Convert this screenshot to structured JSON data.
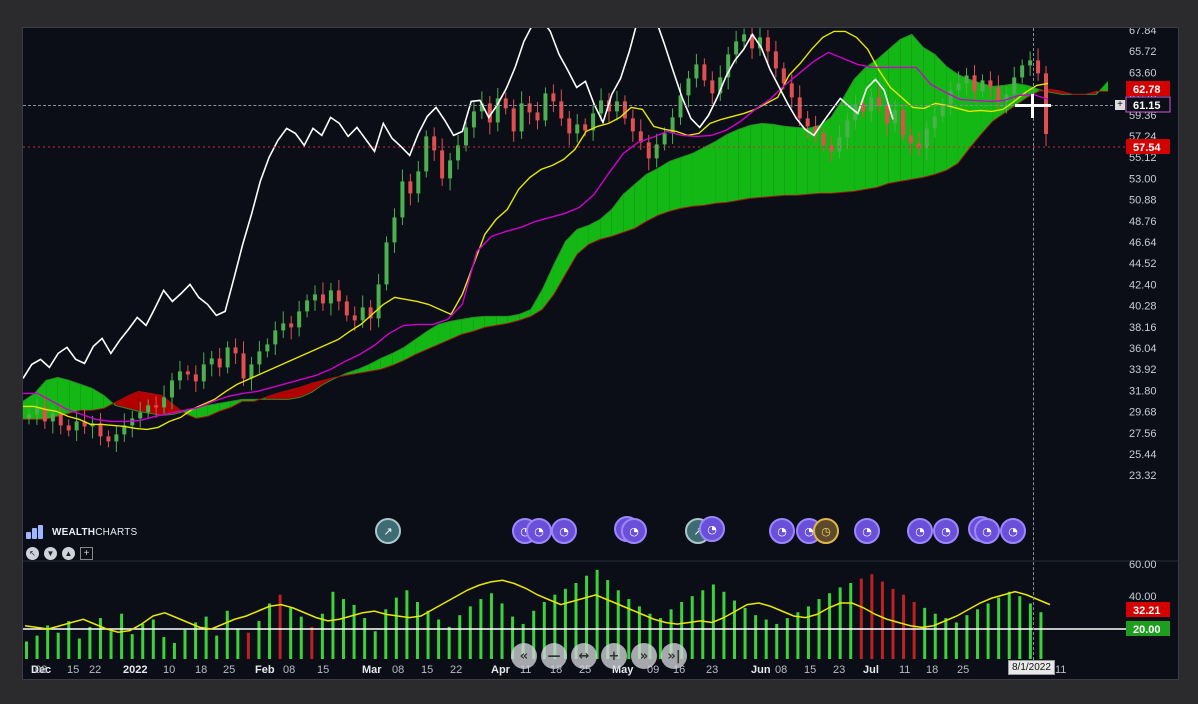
{
  "price_axis_labels": [
    "67.84",
    "65.72",
    "63.60",
    "61.48",
    "59.36",
    "57.24",
    "55.12",
    "53.00",
    "50.88",
    "48.76",
    "46.64",
    "44.52",
    "42.40",
    "40.28",
    "38.16",
    "36.04",
    "33.92",
    "31.80",
    "29.68",
    "27.56",
    "25.44",
    "23.32"
  ],
  "osc_axis_labels": [
    "60.00",
    "40.00",
    "20.00"
  ],
  "price_tags": [
    {
      "value": "62.78",
      "bg": "#d40000",
      "fg": "#ffffff"
    },
    {
      "value": "61.15",
      "bg": "#0b0e16",
      "fg": "#ffffff",
      "border": "#d05bd6"
    },
    {
      "value": "57.54",
      "bg": "#d40000",
      "fg": "#ffffff"
    }
  ],
  "osc_tags": [
    {
      "value": "32.21",
      "bg": "#d40000",
      "fg": "#ffffff"
    },
    {
      "value": "20.00",
      "bg": "#1e9e1e",
      "fg": "#ffffff"
    }
  ],
  "date_labels": [
    "Dec",
    "08",
    "15",
    "22",
    "2022",
    "10",
    "18",
    "25",
    "Feb",
    "08",
    "15",
    "Mar",
    "08",
    "15",
    "22",
    "Apr",
    "11",
    "18",
    "25",
    "May",
    "09",
    "16",
    "23",
    "Jun",
    "08",
    "15",
    "23",
    "Jul",
    "11",
    "18",
    "25",
    "06",
    "11"
  ],
  "bold_dates": [
    "Dec",
    "2022",
    "Feb",
    "Mar",
    "Apr",
    "May",
    "Jun",
    "Jul"
  ],
  "crosshair_date": "8/1/2022",
  "logo": {
    "bold": "WEALTH",
    "thin": "CHARTS"
  },
  "nav_buttons": [
    "«",
    "—",
    "↔",
    "+",
    "»",
    "»|"
  ],
  "tool_buttons": [
    "pointer-icon",
    "triangle-down-icon",
    "triangle-up-icon"
  ],
  "colors": {
    "bull": "#4caf50",
    "bear": "#e05050",
    "cloud_up": "#14b814",
    "cloud_down": "#b40000",
    "tenkan": "#e6e600",
    "kijun": "#d000d0",
    "chikou": "#ffffff",
    "osc_line": "#e8e800"
  },
  "chart_data": {
    "type": "candlestick",
    "indicator": "Ichimoku Cloud",
    "x_range": [
      "2021-11-29",
      "2022-09-14"
    ],
    "ylim": [
      23.32,
      67.84
    ],
    "grid": false,
    "price_series": {
      "close": [
        29.5,
        30.2,
        28.8,
        29.6,
        28.4,
        27.9,
        28.8,
        28.3,
        28.6,
        27.3,
        26.8,
        27.5,
        28.4,
        29.1,
        29.7,
        30.4,
        30.2,
        31.2,
        32.9,
        33.8,
        33.5,
        32.8,
        34.5,
        35.1,
        34.2,
        36.2,
        35.6,
        33.1,
        34.5,
        35.8,
        36.5,
        37.9,
        38.6,
        38.2,
        39.8,
        40.9,
        41.5,
        40.6,
        41.9,
        40.8,
        39.4,
        38.9,
        40.2,
        39.1,
        42.5,
        46.7,
        49.2,
        52.8,
        51.6,
        53.8,
        57.3,
        55.9,
        53.1,
        54.9,
        56.4,
        58.2,
        59.8,
        60.6,
        58.7,
        61.1,
        60.1,
        57.8,
        60.6,
        59.7,
        58.9,
        61.6,
        60.8,
        59.1,
        57.6,
        58.5,
        57.9,
        59.6,
        60.9,
        59.8,
        60.8,
        59.1,
        57.8,
        56.7,
        55.1,
        56.5,
        57.6,
        59.2,
        61.4,
        63.1,
        64.5,
        62.9,
        61.6,
        63.2,
        65.5,
        66.8,
        67.5,
        66.1,
        67.2,
        65.8,
        64.1,
        62.6,
        61.2,
        59.1,
        58.3,
        57.6,
        56.4,
        55.8,
        57.2,
        58.9,
        60.5,
        59.8,
        61.2,
        60.4,
        58.6,
        59.9,
        57.4,
        56.6,
        56.1,
        58.1,
        59.3,
        60.5,
        61.9,
        62.6,
        63.4,
        61.8,
        62.9,
        62.2,
        60.8,
        61.5,
        63.2,
        64.4,
        64.9,
        63.6,
        57.54
      ]
    },
    "cloud": {
      "span_a": [
        30.8,
        31.6,
        32.9,
        33.2,
        32.9,
        32.5,
        32.1,
        31.4,
        30.4,
        30.1,
        29.8,
        29.6,
        29.4,
        29.5,
        29.8,
        30.1,
        30.4,
        30.6,
        30.8,
        31.0,
        31.0,
        31.0,
        31.0,
        31.0,
        31.2,
        31.7,
        32.5,
        33.1,
        33.6,
        34.0,
        34.5,
        35.1,
        35.6,
        36.2,
        37.0,
        37.8,
        38.5,
        38.8,
        39.0,
        39.2,
        39.3,
        39.3,
        39.3,
        39.5,
        40.0,
        42.0,
        44.5,
        46.8,
        48.0,
        48.4,
        49.0,
        50.0,
        51.5,
        52.5,
        53.5,
        54.1,
        54.8,
        55.2,
        55.6,
        56.2,
        56.8,
        57.5,
        58.0,
        58.4,
        58.6,
        58.5,
        58.3,
        58.2,
        58.1,
        58.4,
        59.2,
        61.0,
        63.0,
        64.2,
        65.0,
        66.0,
        67.0,
        67.5,
        66.2,
        65.5,
        64.3,
        63.5,
        63.0,
        62.6,
        62.3,
        62.4,
        62.6,
        62.4,
        62.0,
        61.7,
        61.5,
        61.5,
        61.5,
        61.5,
        62.8
      ],
      "span_b": [
        29.0,
        29.0,
        29.0,
        29.3,
        29.6,
        29.9,
        29.9,
        30.1,
        30.7,
        31.3,
        31.8,
        31.6,
        31.4,
        30.5,
        29.6,
        29.1,
        29.3,
        29.8,
        30.2,
        30.8,
        30.8,
        31.2,
        31.6,
        31.9,
        32.2,
        32.6,
        32.9,
        33.2,
        33.4,
        33.6,
        33.8,
        34.0,
        34.4,
        34.9,
        35.5,
        36.0,
        36.5,
        37.0,
        37.5,
        37.8,
        38.2,
        38.4,
        38.6,
        38.9,
        39.3,
        40.0,
        41.5,
        43.5,
        45.5,
        46.5,
        47.0,
        47.3,
        47.7,
        48.1,
        48.8,
        49.4,
        49.8,
        50.1,
        50.3,
        50.4,
        50.6,
        50.7,
        50.9,
        51.1,
        51.2,
        51.3,
        51.4,
        51.4,
        51.5,
        51.6,
        51.6,
        51.7,
        51.8,
        52.0,
        52.2,
        52.6,
        52.8,
        53.0,
        53.2,
        53.5,
        53.9,
        54.6,
        56.1,
        57.5,
        58.8,
        59.6,
        60.4,
        61.2,
        61.8,
        62.0,
        61.8,
        61.5,
        61.5,
        61.8,
        61.8
      ]
    },
    "tenkan": [
      30.3,
      30.3,
      30.0,
      29.8,
      29.3,
      29.0,
      28.5,
      28.5,
      28.4,
      28.3,
      28.1,
      28.0,
      28.2,
      28.8,
      29.2,
      30.0,
      30.5,
      31.0,
      31.8,
      32.5,
      33.0,
      33.5,
      34.0,
      34.5,
      35.0,
      35.5,
      36.0,
      36.5,
      37.0,
      37.8,
      38.5,
      39.5,
      40.5,
      41.2,
      41.0,
      40.8,
      40.5,
      40.0,
      39.5,
      41.5,
      44.5,
      47.5,
      49.0,
      50.0,
      52.0,
      53.2,
      54.0,
      54.4,
      55.0,
      56.0,
      57.8,
      58.3,
      58.6,
      59.2,
      60.2,
      60.0,
      58.3,
      58.0,
      57.8,
      57.4,
      57.6,
      58.6,
      59.0,
      59.3,
      59.6,
      60.0,
      60.6,
      61.2,
      63.4,
      64.6,
      66.0,
      67.2,
      67.8,
      67.8,
      67.2,
      66.0,
      63.9,
      62.2,
      61.2,
      60.2,
      60.1,
      60.6,
      60.4,
      60.1,
      59.8,
      59.9,
      59.8,
      60.0,
      60.8,
      61.7,
      62.4,
      62.6
    ],
    "kijun": [
      31.6,
      31.6,
      30.8,
      30.0,
      29.5,
      29.0,
      28.8,
      28.8,
      28.9,
      29.3,
      29.6,
      29.9,
      30.2,
      30.8,
      31.3,
      31.6,
      31.8,
      32.2,
      32.6,
      33.0,
      33.4,
      34.0,
      34.8,
      35.5,
      36.4,
      37.6,
      38.4,
      38.5,
      38.5,
      39.0,
      40.5,
      45.8,
      47.3,
      47.8,
      48.2,
      48.8,
      49.2,
      49.6,
      50.2,
      51.5,
      53.6,
      55.6,
      56.7,
      57.2,
      57.8,
      57.4,
      57.3,
      57.4,
      57.9,
      58.8,
      60.0,
      61.0,
      62.4,
      63.6,
      64.8,
      65.7,
      65.1,
      64.5,
      64.2,
      64.2,
      64.2,
      64.2,
      62.5,
      61.7,
      61.0,
      60.9,
      60.8,
      60.9,
      61.4,
      61.5,
      61.0
    ],
    "chikou": [
      33.1,
      34.5,
      35.0,
      34.2,
      35.6,
      36.2,
      35.0,
      34.6,
      36.3,
      37.1,
      35.6,
      36.9,
      38.0,
      39.2,
      38.4,
      40.1,
      41.9,
      40.8,
      41.6,
      42.5,
      41.2,
      40.5,
      39.4,
      39.8,
      43.1,
      46.5,
      49.5,
      52.8,
      55.2,
      56.9,
      58.1,
      57.6,
      56.4,
      58.1,
      57.4,
      59.2,
      58.6,
      57.3,
      58.2,
      57.0,
      55.8,
      58.6,
      57.1,
      56.3,
      55.4,
      57.6,
      59.3,
      60.2,
      58.9,
      57.4,
      57.8,
      60.8,
      60.9,
      59.2,
      60.5,
      62.1,
      64.2,
      66.8,
      68.5,
      69.0,
      67.8,
      65.5,
      63.9,
      62.2,
      62.8,
      60.5,
      58.7,
      61.5,
      63.1,
      65.8,
      69.1,
      70.2,
      69.0,
      66.5,
      63.8,
      61.2,
      59.1,
      58.2,
      59.4,
      61.2,
      63.3,
      64.9,
      66.0,
      67.5,
      66.2,
      64.0,
      62.3,
      60.6,
      59.1,
      58.0,
      57.4,
      58.7,
      59.9,
      61.1,
      60.3,
      59.6,
      62.1,
      63.0,
      61.9,
      59.0
    ],
    "oscillator": {
      "ylim": [
        0,
        65
      ],
      "levels": [
        20
      ],
      "line": [
        22,
        21,
        20,
        22,
        24,
        26,
        23,
        20,
        18,
        19,
        23,
        28,
        30,
        27,
        24,
        21,
        20,
        23,
        26,
        28,
        31,
        34,
        35,
        33,
        30,
        27,
        25,
        26,
        28,
        30,
        31,
        29,
        28,
        27,
        28,
        32,
        36,
        40,
        44,
        47,
        49,
        50,
        48,
        45,
        41,
        38,
        35,
        37,
        39,
        41,
        38,
        35,
        32,
        29,
        26,
        24,
        23,
        24,
        25,
        24,
        27,
        31,
        35,
        36,
        34,
        31,
        28,
        27,
        29,
        33,
        36,
        36,
        33,
        29,
        26,
        24,
        22,
        21,
        22,
        25,
        28,
        32,
        36,
        39,
        41,
        43,
        41,
        38,
        35
      ],
      "histogram": [
        12,
        16,
        23,
        18,
        26,
        14,
        22,
        28,
        19,
        31,
        17,
        24,
        27,
        15,
        11,
        20,
        25,
        29,
        16,
        33,
        21,
        18,
        26,
        38,
        44,
        35,
        29,
        22,
        31,
        46,
        41,
        37,
        28,
        19,
        34,
        42,
        47,
        39,
        33,
        27,
        22,
        30,
        36,
        41,
        45,
        38,
        29,
        24,
        33,
        39,
        44,
        48,
        52,
        57,
        61,
        54,
        47,
        41,
        36,
        31,
        28,
        34,
        39,
        43,
        47,
        51,
        46,
        40,
        35,
        30,
        27,
        24,
        28,
        32,
        36,
        41,
        45,
        49,
        52,
        55,
        58,
        53,
        48,
        44,
        39,
        35,
        31,
        28,
        25,
        30,
        34,
        38,
        42,
        46,
        43,
        38,
        32
      ]
    }
  }
}
